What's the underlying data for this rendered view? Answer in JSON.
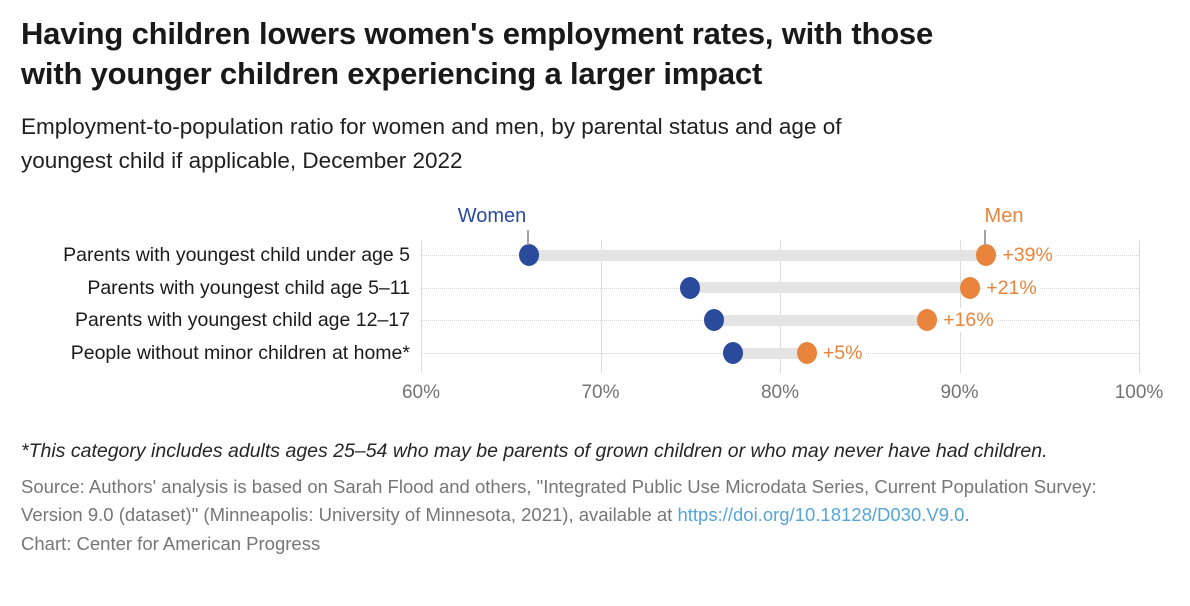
{
  "header": {
    "title_lines": [
      "Having children lowers women's employment rates, with those",
      "with younger children experiencing a larger impact"
    ],
    "subtitle_lines": [
      "Employment-to-population ratio for women and men, by parental status and age of",
      "youngest child if applicable, December 2022"
    ]
  },
  "chart_data": {
    "type": "dumbbell",
    "categories": [
      "Parents with youngest child under age 5",
      "Parents with youngest child age 5–11",
      "Parents with youngest child age 12–17",
      "People without minor children at home*"
    ],
    "series": [
      {
        "name": "Women",
        "color": "#2a4a9c",
        "values": [
          66,
          75,
          76.3,
          77.4
        ]
      },
      {
        "name": "Men",
        "color": "#e8843c",
        "values": [
          91.5,
          90.6,
          88.2,
          81.5
        ]
      }
    ],
    "diff_labels": [
      "+39%",
      "+21%",
      "+16%",
      "+5%"
    ],
    "x_ticks": [
      {
        "value": 60,
        "label": "60%"
      },
      {
        "value": 70,
        "label": "70%"
      },
      {
        "value": 80,
        "label": "80%"
      },
      {
        "value": 90,
        "label": "90%"
      },
      {
        "value": 100,
        "label": "100%"
      }
    ],
    "xlim": [
      60,
      100
    ],
    "grid": "vertical-solid-plus-row-dotted",
    "connector_color": "#e4e4e4",
    "unit": "%"
  },
  "footer": {
    "footnote": "*This category includes adults ages 25–54 who may be parents of grown children or who may never have had children.",
    "source_prefix": "Source: Authors' analysis is based on Sarah Flood and others, \"Integrated Public Use Microdata Series, Current Population Survey: Version 9.0 (dataset)\" (Minneapolis: University of Minnesota, 2021), available at ",
    "source_link": "https://doi.org/10.18128/D030.V9.0",
    "source_suffix": ".",
    "credit": "Chart: Center for American Progress"
  }
}
